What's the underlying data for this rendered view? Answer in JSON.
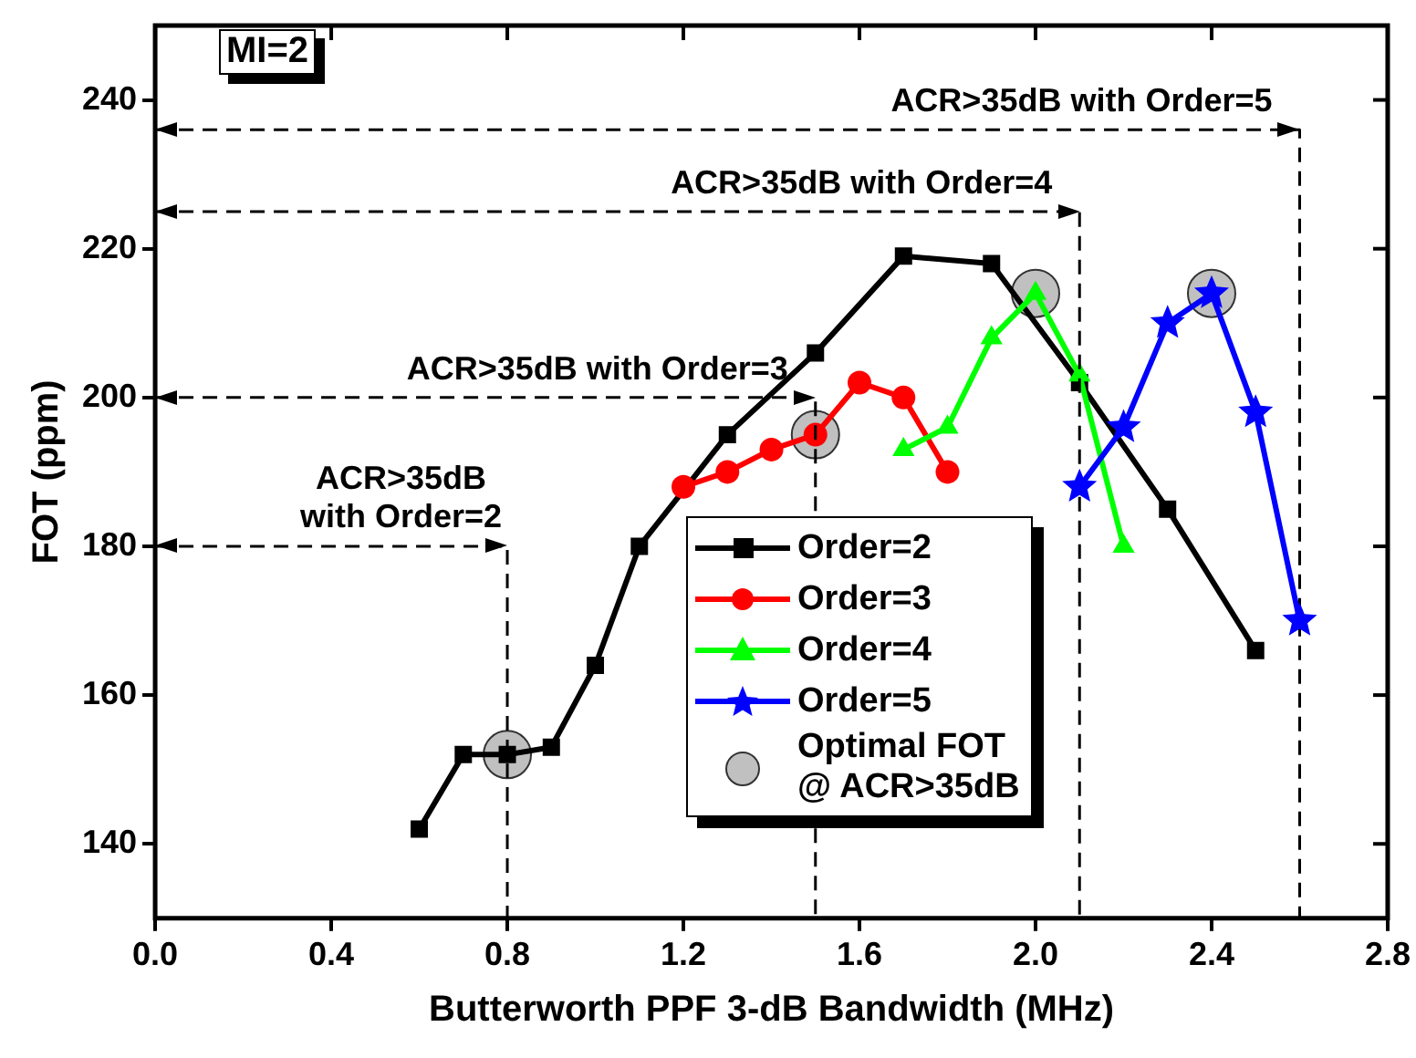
{
  "chart_data": {
    "type": "line",
    "xlabel": "Butterworth PPF 3-dB Bandwidth (MHz)",
    "ylabel": "FOT (ppm)",
    "xlim": [
      0,
      2.8
    ],
    "xticks": [
      {
        "value": 0,
        "label": "0.0"
      },
      0.4,
      0.8,
      1.2,
      1.6,
      {
        "value": 2,
        "label": "2.0"
      },
      2.4,
      2.8
    ],
    "ylim": [
      130,
      250
    ],
    "yticks": [
      140,
      160,
      180,
      200,
      220,
      240
    ],
    "grid": false,
    "legend": "bottom",
    "series": [
      {
        "name": "Order=2",
        "color": "#000000",
        "marker": "square",
        "x": [
          0.6,
          0.7,
          0.8,
          0.9,
          1.0,
          1.1,
          1.3,
          1.5,
          1.7,
          1.9,
          2.1,
          2.3,
          2.5
        ],
        "values": [
          142,
          152,
          152,
          153,
          164,
          180,
          195,
          206,
          219,
          218,
          202,
          185,
          166
        ]
      },
      {
        "name": "Order=3",
        "color": "#ff0000",
        "marker": "circle",
        "x": [
          1.2,
          1.3,
          1.4,
          1.5,
          1.6,
          1.7,
          1.8
        ],
        "values": [
          188,
          190,
          193,
          195,
          202,
          200,
          190
        ]
      },
      {
        "name": "Order=4",
        "color": "#00ff00",
        "marker": "triangle",
        "x": [
          1.7,
          1.8,
          1.9,
          2.0,
          2.1,
          2.2
        ],
        "values": [
          193,
          196,
          208,
          214,
          203,
          180
        ]
      },
      {
        "name": "Order=5",
        "color": "#0000ff",
        "marker": "star",
        "x": [
          2.1,
          2.2,
          2.3,
          2.4,
          2.5,
          2.6
        ],
        "values": [
          188,
          196,
          210,
          214,
          198,
          170
        ]
      },
      {
        "name": "Optimal FOT\n@ ACR>35dB",
        "type": "scatter",
        "color": "#c0c0c0",
        "marker": "circle",
        "x": [
          0.8,
          1.5,
          2.0,
          2.4
        ],
        "values": [
          152,
          195,
          214,
          214
        ]
      },
      {
        "color": "#000000",
        "marker": "none",
        "line_style": "dashed",
        "x": [
          0,
          2.6,
          2.6
        ],
        "values": [
          236,
          236,
          130
        ]
      },
      {
        "color": "#000000",
        "marker": "none",
        "line_style": "dashed",
        "x": [
          0,
          2.1,
          2.1
        ],
        "values": [
          225,
          225,
          130
        ]
      },
      {
        "color": "#000000",
        "marker": "none",
        "line_style": "dashed",
        "x": [
          0,
          1.5,
          1.5
        ],
        "values": [
          200,
          200,
          130
        ]
      },
      {
        "color": "#000000",
        "marker": "none",
        "line_style": "dashed",
        "x": [
          0,
          0.8,
          0.8
        ],
        "values": [
          180,
          180,
          130
        ]
      }
    ],
    "annotations": [
      "MI=2",
      {
        "text": "ACR>35dB with Order=5",
        "x": 2.6,
        "y": 236
      },
      {
        "text": "ACR>35dB with Order=4",
        "x": 2.1,
        "y": 225
      },
      {
        "text": "ACR>35dB with Order=3",
        "x": 1.5,
        "y": 200
      },
      {
        "text": "ACR>35dB\nwith Order=2",
        "x": 0.8,
        "y": 180
      }
    ]
  }
}
